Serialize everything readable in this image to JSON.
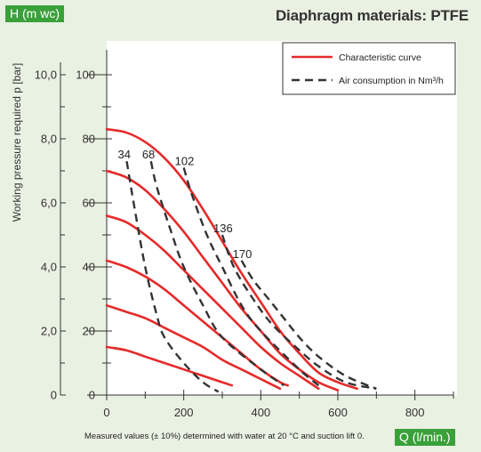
{
  "chart_data": {
    "type": "line",
    "title": "Diaphragm materials: PTFE",
    "x_axis_tag": "Q (l/min.)",
    "y_axis_tag": "H (m wc)",
    "y_label_left": "Working pressure required p [bar]",
    "footnote": "Measured values (± 10%) determined with water at 20 °C and suction lift 0.",
    "xlim": [
      0,
      900
    ],
    "ylim_m": [
      0,
      110
    ],
    "x_ticks": [
      "0",
      "200",
      "400",
      "600",
      "800"
    ],
    "x_tick_values": [
      0,
      200,
      400,
      600,
      800
    ],
    "y_ticks_m": [
      "0",
      "20",
      "40",
      "60",
      "80",
      "100"
    ],
    "y_tick_values_m": [
      0,
      20,
      40,
      60,
      80,
      100
    ],
    "y_ticks_bar": [
      "0",
      "2,0",
      "4,0",
      "6,0",
      "8,0",
      "10,0"
    ],
    "grid": false,
    "legend_position": "top-right",
    "legend": [
      {
        "label": "Characteristic curve",
        "style": "solid",
        "color": "#e52a2a"
      },
      {
        "label": "Air consumption in Nm³/h",
        "style": "dashed",
        "color": "#333333"
      }
    ],
    "characteristic_curves": [
      {
        "x": [
          0,
          50,
          100,
          150,
          200,
          250,
          300,
          350,
          400,
          450,
          500,
          550,
          600,
          650
        ],
        "y": [
          83,
          82,
          79,
          74,
          67,
          58,
          48,
          38,
          29,
          20,
          13,
          7,
          4,
          2
        ]
      },
      {
        "x": [
          0,
          50,
          100,
          150,
          200,
          250,
          300,
          350,
          400,
          450,
          500,
          550,
          600
        ],
        "y": [
          70,
          68,
          64,
          58,
          51,
          43,
          35,
          27,
          20,
          13,
          8,
          4,
          1.5
        ]
      },
      {
        "x": [
          0,
          50,
          100,
          150,
          200,
          250,
          300,
          350,
          400,
          450,
          500,
          550
        ],
        "y": [
          56,
          54,
          50,
          45,
          39,
          33,
          27,
          21,
          15,
          10,
          6,
          2
        ]
      },
      {
        "x": [
          0,
          50,
          100,
          150,
          200,
          250,
          300,
          350,
          400,
          450,
          470
        ],
        "y": [
          42,
          40,
          37,
          33,
          28,
          23,
          18,
          13,
          8,
          4,
          3
        ]
      },
      {
        "x": [
          0,
          50,
          100,
          150,
          200,
          250,
          300,
          350,
          400,
          450
        ],
        "y": [
          28,
          26,
          24,
          21,
          18,
          15,
          11,
          8,
          5,
          2
        ]
      },
      {
        "x": [
          0,
          50,
          100,
          150,
          200,
          250,
          300,
          325
        ],
        "y": [
          15,
          14,
          12,
          10,
          8,
          6,
          4,
          3
        ]
      }
    ],
    "air_consumption_curves": [
      {
        "label": "34",
        "x": [
          52,
          70,
          100,
          130,
          150,
          200,
          250,
          290
        ],
        "y": [
          73,
          60,
          40,
          25,
          18,
          10,
          4,
          1
        ]
      },
      {
        "label": "68",
        "x": [
          115,
          130,
          170,
          200,
          250,
          300,
          400,
          460
        ],
        "y": [
          73,
          65,
          50,
          40,
          28,
          18,
          8,
          3
        ]
      },
      {
        "label": "102",
        "x": [
          200,
          220,
          260,
          300,
          350,
          400,
          500,
          550
        ],
        "y": [
          71,
          63,
          50,
          40,
          28,
          20,
          8,
          3
        ]
      },
      {
        "label": "136",
        "x": [
          300,
          330,
          380,
          430,
          500,
          550,
          620,
          700
        ],
        "y": [
          50,
          40,
          30,
          22,
          14,
          9,
          4,
          2
        ]
      },
      {
        "label": "170",
        "x": [
          350,
          380,
          420,
          460,
          500,
          550,
          620,
          700
        ],
        "y": [
          42,
          36,
          30,
          24,
          18,
          12,
          6,
          2
        ]
      }
    ]
  }
}
